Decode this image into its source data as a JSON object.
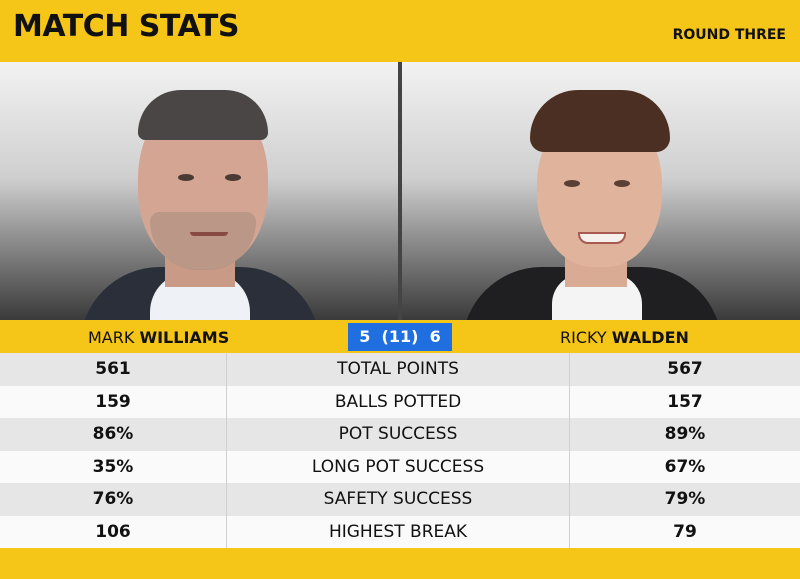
{
  "header": {
    "title": "MATCH STATS",
    "round": "ROUND THREE"
  },
  "players": {
    "left": {
      "first": "MARK ",
      "last": "WILLIAMS"
    },
    "right": {
      "first": "RICKY ",
      "last": "WALDEN"
    }
  },
  "score": {
    "text": "5  (11)  6"
  },
  "stats": [
    {
      "label": "TOTAL POINTS",
      "left": "561",
      "right": "567"
    },
    {
      "label": "BALLS POTTED",
      "left": "159",
      "right": "157"
    },
    {
      "label": "POT SUCCESS",
      "left": "86%",
      "right": "89%"
    },
    {
      "label": "LONG POT SUCCESS",
      "left": "35%",
      "right": "67%"
    },
    {
      "label": "SAFETY SUCCESS",
      "left": "76%",
      "right": "79%"
    },
    {
      "label": "HIGHEST BREAK",
      "left": "106",
      "right": "79"
    }
  ],
  "colors": {
    "accent": "#f5c518",
    "score_bg": "#1f6fe0"
  }
}
